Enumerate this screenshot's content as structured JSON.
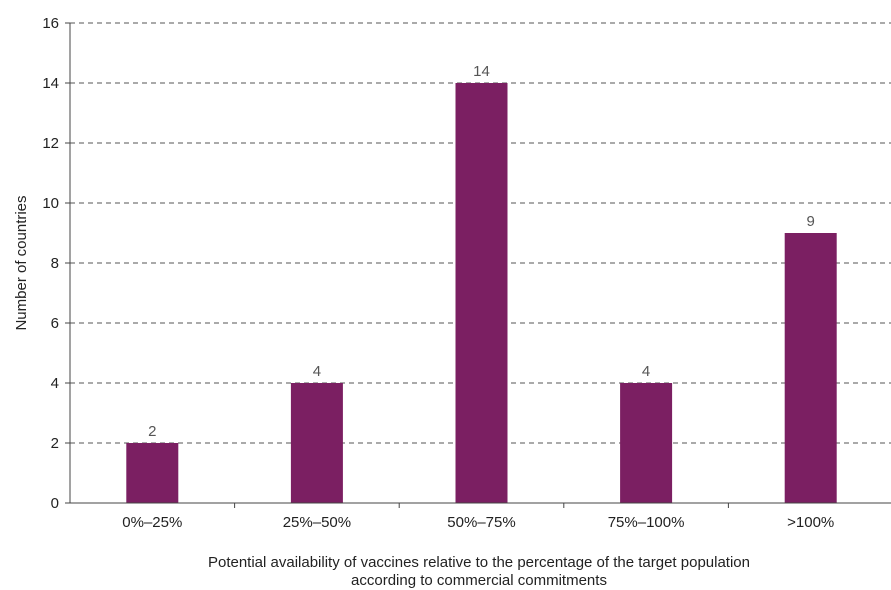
{
  "chart_data": {
    "type": "bar",
    "categories": [
      "0%–25%",
      "25%–50%",
      "50%–75%",
      "75%–100%",
      ">100%"
    ],
    "values": [
      2,
      4,
      14,
      4,
      9
    ],
    "data_labels": [
      "2",
      "4",
      "14",
      "4",
      "9"
    ],
    "title": "",
    "xlabel_lines": [
      "Potential availability of vaccines relative to the percentage of the target population",
      "according to commercial commitments"
    ],
    "ylabel": "Number of countries",
    "ylim": [
      0,
      16
    ],
    "yticks": [
      0,
      2,
      4,
      6,
      8,
      10,
      12,
      14,
      16
    ],
    "ytick_labels": [
      "0",
      "2",
      "4",
      "6",
      "8",
      "10",
      "12",
      "14",
      "16"
    ],
    "grid": true,
    "legend": "none",
    "bar_color": "#7B1F62"
  }
}
